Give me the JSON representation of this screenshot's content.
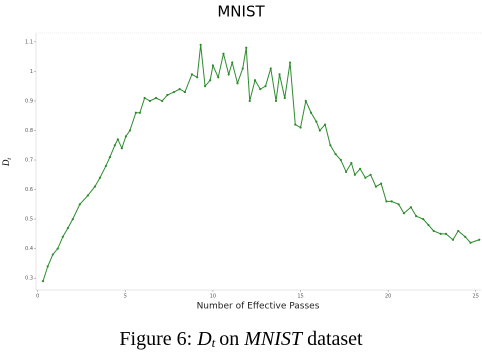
{
  "chart_data": {
    "type": "line",
    "title": "MNIST",
    "xlabel": "Number of Effective Passes",
    "ylabel": "D",
    "ylabel_sub": "t",
    "x": [
      0.3,
      0.57,
      0.86,
      1.14,
      1.43,
      1.72,
      2.0,
      2.4,
      2.86,
      3.26,
      3.55,
      3.89,
      4.12,
      4.4,
      4.57,
      4.8,
      5.03,
      5.26,
      5.6,
      5.83,
      6.1,
      6.4,
      6.75,
      7.1,
      7.4,
      7.77,
      8.1,
      8.4,
      8.8,
      9.1,
      9.3,
      9.55,
      9.84,
      10.0,
      10.3,
      10.6,
      10.9,
      11.1,
      11.4,
      11.7,
      11.9,
      12.1,
      12.4,
      12.7,
      13.0,
      13.3,
      13.6,
      13.8,
      14.1,
      14.4,
      14.7,
      15.0,
      15.3,
      15.6,
      15.9,
      16.1,
      16.4,
      16.7,
      17.0,
      17.3,
      17.6,
      17.9,
      18.1,
      18.4,
      18.7,
      19.0,
      19.3,
      19.6,
      19.9,
      20.2,
      20.6,
      20.9,
      21.3,
      21.6,
      22.0,
      22.3,
      22.6,
      23.0,
      23.3,
      23.7,
      24.0,
      24.4,
      24.7,
      25.2
    ],
    "series": [
      {
        "name": "D_t",
        "color": "#2e8b2e",
        "values": [
          0.29,
          0.34,
          0.38,
          0.4,
          0.44,
          0.47,
          0.5,
          0.55,
          0.58,
          0.61,
          0.64,
          0.68,
          0.71,
          0.75,
          0.77,
          0.74,
          0.78,
          0.8,
          0.86,
          0.86,
          0.91,
          0.9,
          0.91,
          0.9,
          0.92,
          0.93,
          0.94,
          0.93,
          0.99,
          0.98,
          1.09,
          0.95,
          0.97,
          1.02,
          0.98,
          1.06,
          0.99,
          1.03,
          0.96,
          1.01,
          1.08,
          0.9,
          0.97,
          0.94,
          0.95,
          1.01,
          0.9,
          0.99,
          0.91,
          1.03,
          0.82,
          0.81,
          0.9,
          0.86,
          0.83,
          0.8,
          0.82,
          0.75,
          0.72,
          0.7,
          0.66,
          0.69,
          0.65,
          0.67,
          0.64,
          0.65,
          0.61,
          0.62,
          0.56,
          0.56,
          0.55,
          0.52,
          0.54,
          0.51,
          0.5,
          0.48,
          0.46,
          0.45,
          0.45,
          0.43,
          0.46,
          0.44,
          0.42,
          0.43
        ]
      }
    ],
    "xlim": [
      -0.1,
      25.3
    ],
    "xticks": [
      0,
      5,
      10,
      15,
      20,
      25
    ],
    "ylim": [
      0.26,
      1.13
    ],
    "yticks": [
      0.3,
      0.4,
      0.5,
      0.6,
      0.7,
      0.8,
      0.9,
      1.0,
      1.1
    ]
  },
  "caption": {
    "label": "Figure 6:",
    "symbol": "D",
    "subscript": "t",
    "text": "on",
    "emphasis": "MNIST",
    "tail": "dataset"
  }
}
